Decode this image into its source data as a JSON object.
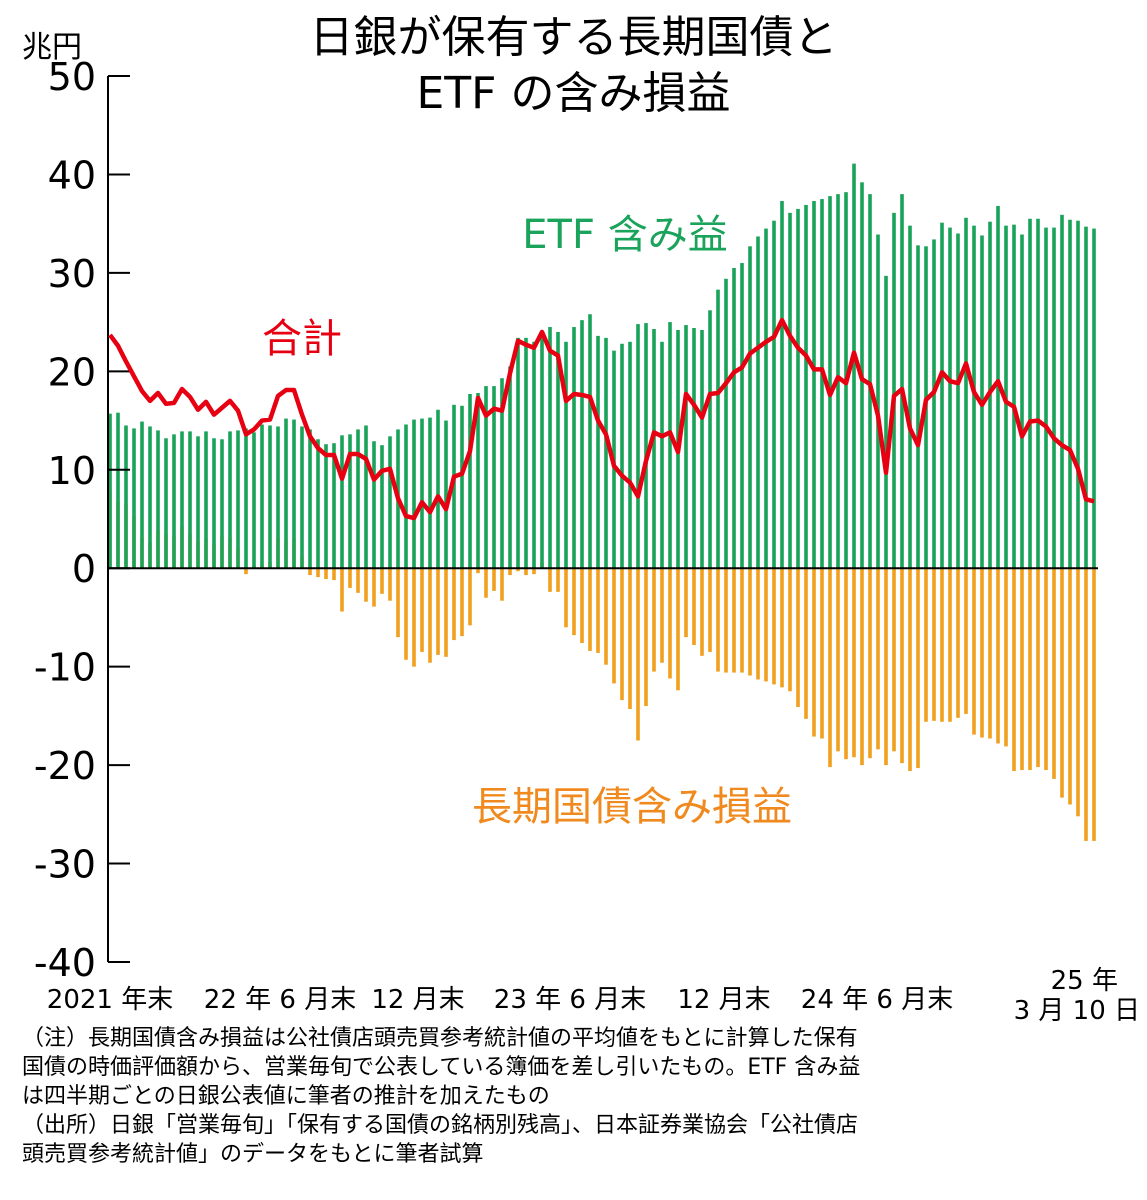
{
  "title_line1": "日銀が保有する長期国債と",
  "title_line2": "ETF の含み損益",
  "unit": "兆円",
  "notes": {
    "line1": "（注）長期国債含み損益は公社債店頭売買参考統計値の平均値をもとに計算した保有",
    "line2": "国債の時価評価額から、営業毎旬で公表している簿価を差し引いたもの。ETF 含み益",
    "line3": "は四半期ごとの日銀公表値に筆者の推計を加えたもの",
    "line4": "（出所）日銀「営業毎旬」「保有する国債の銘柄別残高」、日本証券業協会「公社債店",
    "line5": "頭売買参考統計値」のデータをもとに筆者試算"
  },
  "chart_data": {
    "type": "bar",
    "ylim": [
      -40,
      50
    ],
    "yticks": [
      50,
      40,
      30,
      20,
      10,
      0,
      -10,
      -20,
      -30,
      -40
    ],
    "xtick_labels": [
      "2021 年末",
      "22 年 6 月末",
      "12 月末",
      "23 年 6 月末",
      "12 月末",
      "24 年 6 月末"
    ],
    "xtick_last_line1": "25 年",
    "xtick_last_line2": "3 月 10 日",
    "series_labels": {
      "etf": "ETF 含み益",
      "jgb": "長期国債含み損益",
      "total": "合計"
    },
    "colors": {
      "etf": "#1aa35a",
      "jgb": "#f0a01e",
      "total": "#e60012",
      "axis": "#000000"
    },
    "series": [
      {
        "name": "ETF 含み益",
        "values": [
          15.7,
          15.8,
          14.5,
          14.2,
          14.9,
          14.4,
          14.0,
          13.2,
          13.6,
          13.9,
          13.9,
          13.4,
          13.9,
          13.2,
          13.1,
          13.9,
          14.0,
          14.2,
          13.8,
          14.6,
          14.5,
          14.4,
          15.2,
          15.1,
          14.4,
          14.1,
          13.1,
          12.6,
          12.7,
          13.5,
          13.6,
          14.1,
          14.5,
          12.9,
          12.5,
          13.4,
          14.1,
          14.6,
          15.1,
          15.2,
          15.3,
          16.1,
          15.0,
          16.6,
          16.5,
          17.7,
          17.8,
          18.5,
          18.5,
          19.3,
          20.5,
          23.4,
          23.4,
          23.0,
          23.5,
          24.5,
          24.0,
          23.0,
          24.5,
          25.2,
          25.8,
          23.6,
          23.4,
          22.1,
          22.8,
          23.0,
          24.8,
          24.9,
          24.3,
          23.0,
          25.0,
          24.2,
          24.7,
          24.4,
          24.2,
          26.2,
          28.3,
          29.4,
          30.5,
          31.0,
          32.7,
          33.7,
          34.5,
          35.3,
          37.3,
          36.1,
          36.5,
          36.9,
          37.3,
          37.5,
          37.8,
          38.0,
          38.2,
          41.1,
          39.2,
          38.0,
          33.9,
          29.7,
          36.1,
          38.0,
          34.8,
          32.8,
          32.7,
          33.4,
          35.1,
          34.6,
          34.0,
          35.6,
          34.8,
          33.8,
          35.2,
          36.8,
          34.8,
          34.9,
          33.9,
          35.5,
          35.5,
          34.6,
          34.6,
          35.9,
          35.4,
          35.3,
          34.7,
          34.5
        ]
      },
      {
        "name": "長期国債含み損益",
        "values": [
          8.0,
          6.8,
          6.5,
          5.3,
          3.1,
          2.6,
          3.8,
          3.5,
          3.2,
          4.3,
          3.5,
          2.7,
          3.0,
          2.4,
          3.2,
          3.1,
          2.0,
          -0.6,
          0.3,
          0.4,
          0.6,
          3.1,
          2.9,
          3.0,
          1.2,
          -0.7,
          -0.9,
          -1.1,
          -1.2,
          -4.4,
          -2.0,
          -2.5,
          -3.4,
          -3.9,
          -2.6,
          -3.3,
          -7.0,
          -9.3,
          -10.0,
          -8.5,
          -9.6,
          -8.8,
          -9.0,
          -7.3,
          -6.9,
          -5.8,
          -0.5,
          -3.0,
          -2.3,
          -3.3,
          -0.7,
          -0.3,
          -0.7,
          -0.6,
          0.5,
          -2.4,
          -2.4,
          -6.0,
          -6.8,
          -7.6,
          -8.4,
          -8.6,
          -9.8,
          -11.7,
          -13.4,
          -14.3,
          -17.5,
          -14.0,
          -10.5,
          -9.6,
          -11.2,
          -12.4,
          -7.0,
          -7.8,
          -8.9,
          -8.5,
          -10.5,
          -10.6,
          -10.6,
          -10.6,
          -10.9,
          -11.3,
          -11.5,
          -11.8,
          -12.1,
          -12.5,
          -14.1,
          -15.3,
          -17.1,
          -17.3,
          -20.2,
          -18.6,
          -19.4,
          -19.2,
          -20.0,
          -19.3,
          -18.4,
          -20.0,
          -18.6,
          -19.8,
          -20.6,
          -20.3,
          -15.6,
          -15.5,
          -15.6,
          -15.6,
          -15.2,
          -14.8,
          -16.9,
          -17.2,
          -17.3,
          -17.8,
          -18.1,
          -20.6,
          -20.5,
          -20.5,
          -20.2,
          -20.5,
          -21.4,
          -23.3,
          -24.0,
          -25.2,
          -27.7,
          -27.7
        ]
      },
      {
        "name": "合計",
        "values": [
          23.7,
          22.6,
          21.0,
          19.5,
          18.0,
          17.0,
          17.8,
          16.7,
          16.8,
          18.2,
          17.4,
          16.1,
          16.9,
          15.6,
          16.3,
          17.0,
          16.0,
          13.6,
          14.1,
          15.0,
          15.1,
          17.5,
          18.1,
          18.1,
          15.6,
          13.4,
          12.2,
          11.5,
          11.5,
          9.1,
          11.6,
          11.6,
          11.1,
          9.0,
          9.9,
          10.1,
          7.1,
          5.3,
          5.1,
          6.7,
          5.7,
          7.3,
          6.0,
          9.3,
          9.6,
          11.9,
          17.3,
          15.5,
          16.2,
          16.0,
          19.8,
          23.1,
          22.7,
          22.4,
          24.0,
          22.1,
          21.6,
          17.0,
          17.7,
          17.6,
          17.4,
          15.0,
          13.6,
          10.4,
          9.4,
          8.7,
          7.3,
          10.9,
          13.8,
          13.4,
          13.8,
          11.8,
          17.7,
          16.6,
          15.3,
          17.7,
          17.8,
          18.8,
          19.9,
          20.4,
          21.8,
          22.4,
          23.0,
          23.5,
          25.2,
          23.6,
          22.4,
          21.6,
          20.2,
          20.2,
          17.6,
          19.4,
          18.8,
          21.9,
          19.2,
          18.7,
          15.5,
          9.7,
          17.5,
          18.2,
          14.2,
          12.5,
          17.1,
          17.9,
          19.9,
          19.0,
          18.8,
          20.8,
          17.9,
          16.6,
          17.9,
          19.0,
          16.9,
          16.4,
          13.4,
          14.9,
          15.0,
          14.4,
          13.2,
          12.5,
          12.0,
          10.1,
          7.0,
          6.8
        ]
      }
    ]
  }
}
